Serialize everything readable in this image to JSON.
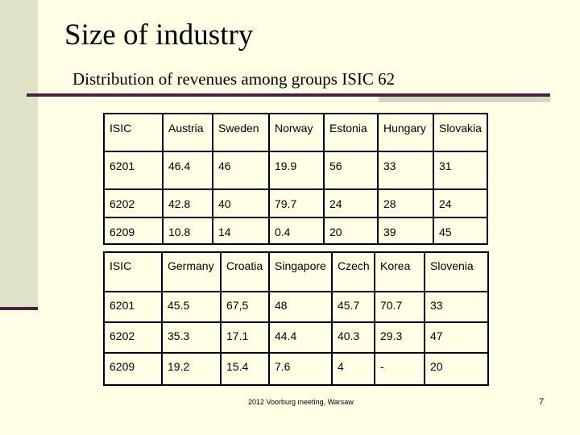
{
  "title": "Size of industry",
  "subtitle": "Distribution of revenues among groups ISIC 62",
  "table1": {
    "rows": [
      [
        "ISIC",
        "Austria",
        "Sweden",
        "Norway",
        "Estonia",
        "Hungary",
        "Slovakia"
      ],
      [
        "6201",
        "46.4",
        "46",
        "19.9",
        "56",
        "33",
        "31"
      ],
      [
        "6202",
        "42.8",
        "40",
        "79.7",
        "24",
        "28",
        "24"
      ],
      [
        "6209",
        "10.8",
        "14",
        "0.4",
        "20",
        "39",
        "45"
      ]
    ]
  },
  "table2": {
    "rows": [
      [
        "ISIC",
        "Germany",
        "Croatia",
        "Singapore",
        "Czech",
        "Korea",
        "Slovenia"
      ],
      [
        "6201",
        "45.5",
        "67,5",
        "48",
        "45.7",
        "70.7",
        "33"
      ],
      [
        "6202",
        "35.3",
        "17.1",
        "44.4",
        "40.3",
        "29.3",
        "47"
      ],
      [
        "6209",
        "19.2",
        "15.4",
        "7.6",
        "4",
        "-",
        "20"
      ]
    ]
  },
  "footer": "2012 Voorburg meeting, Warsaw",
  "page_number": "7",
  "colors": {
    "background": "#FFFFE5",
    "left_bar": "#E1E3C9",
    "accent_rule": "#4D1F47"
  }
}
